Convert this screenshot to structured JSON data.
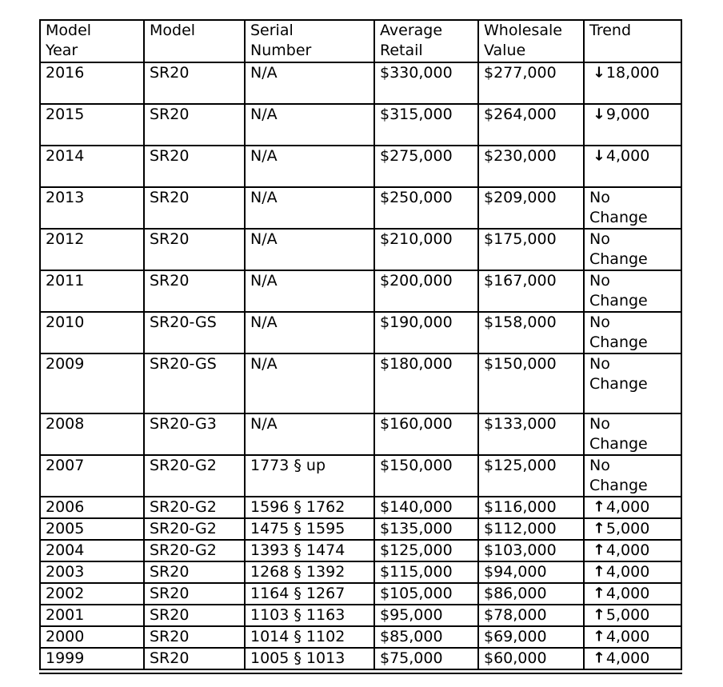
{
  "table": {
    "name": "aircraft-bluebook-value-table",
    "columns": [
      {
        "key": "year",
        "label": "Model\nYear"
      },
      {
        "key": "model",
        "label": "Model"
      },
      {
        "key": "serial",
        "label": "Serial\nNumber"
      },
      {
        "key": "retail",
        "label": "Average\nRetail"
      },
      {
        "key": "wholesale",
        "label": "Wholesale\nValue"
      },
      {
        "key": "trend",
        "label": "Trend"
      }
    ],
    "rows": [
      {
        "size": "tall",
        "year": "2016",
        "model": "SR20",
        "serial": "N/A",
        "retail": "$330,000",
        "wholesale": "$277,000",
        "trend": {
          "dir": "down",
          "arrow": "↓",
          "value": "18,000"
        }
      },
      {
        "size": "tall",
        "year": "2015",
        "model": "SR20",
        "serial": "N/A",
        "retail": "$315,000",
        "wholesale": "$264,000",
        "trend": {
          "dir": "down",
          "arrow": "↓",
          "value": "9,000"
        }
      },
      {
        "size": "tall",
        "year": "2014",
        "model": "SR20",
        "serial": "N/A",
        "retail": "$275,000",
        "wholesale": "$230,000",
        "trend": {
          "dir": "down",
          "arrow": "↓",
          "value": "4,000"
        }
      },
      {
        "size": "tall",
        "year": "2013",
        "model": "SR20",
        "serial": "N/A",
        "retail": "$250,000",
        "wholesale": "$209,000",
        "trend": {
          "dir": "none",
          "text": "No\nChange"
        }
      },
      {
        "size": "tall",
        "year": "2012",
        "model": "SR20",
        "serial": "N/A",
        "retail": "$210,000",
        "wholesale": "$175,000",
        "trend": {
          "dir": "none",
          "text": "No\nChange"
        }
      },
      {
        "size": "tall",
        "year": "2011",
        "model": "SR20",
        "serial": "N/A",
        "retail": "$200,000",
        "wholesale": "$167,000",
        "trend": {
          "dir": "none",
          "text": "No\nChange"
        }
      },
      {
        "size": "tall",
        "year": "2010",
        "model": "SR20-GS",
        "serial": "N/A",
        "retail": "$190,000",
        "wholesale": "$158,000",
        "trend": {
          "dir": "none",
          "text": "No\nChange"
        }
      },
      {
        "size": "xtall",
        "year": "2009",
        "model": "SR20-GS",
        "serial": "N/A",
        "retail": "$180,000",
        "wholesale": "$150,000",
        "trend": {
          "dir": "none",
          "text": "No\nChange"
        }
      },
      {
        "size": "tall",
        "year": "2008",
        "model": "SR20-G3",
        "serial": "N/A",
        "retail": "$160,000",
        "wholesale": "$133,000",
        "trend": {
          "dir": "none",
          "text": "No\nChange"
        }
      },
      {
        "size": "tall",
        "year": "2007",
        "model": "SR20-G2",
        "serial": "1773 § up",
        "retail": "$150,000",
        "wholesale": "$125,000",
        "trend": {
          "dir": "none",
          "text": "No\nChange"
        }
      },
      {
        "size": "short",
        "year": "2006",
        "model": "SR20-G2",
        "serial": "1596 § 1762",
        "retail": "$140,000",
        "wholesale": "$116,000",
        "trend": {
          "dir": "up",
          "arrow": "↑",
          "value": "4,000"
        }
      },
      {
        "size": "short",
        "year": "2005",
        "model": "SR20-G2",
        "serial": "1475 § 1595",
        "retail": "$135,000",
        "wholesale": "$112,000",
        "trend": {
          "dir": "up",
          "arrow": "↑",
          "value": "5,000"
        }
      },
      {
        "size": "short",
        "year": "2004",
        "model": "SR20-G2",
        "serial": "1393 § 1474",
        "retail": "$125,000",
        "wholesale": "$103,000",
        "trend": {
          "dir": "up",
          "arrow": "↑",
          "value": "4,000"
        }
      },
      {
        "size": "short",
        "year": "2003",
        "model": "SR20",
        "serial": "1268 § 1392",
        "retail": "$115,000",
        "wholesale": "$94,000",
        "trend": {
          "dir": "up",
          "arrow": "↑",
          "value": "4,000"
        }
      },
      {
        "size": "short",
        "year": "2002",
        "model": "SR20",
        "serial": "1164 § 1267",
        "retail": "$105,000",
        "wholesale": "$86,000",
        "trend": {
          "dir": "up",
          "arrow": "↑",
          "value": "4,000"
        }
      },
      {
        "size": "short",
        "year": "2001",
        "model": "SR20",
        "serial": "1103 § 1163",
        "retail": "$95,000",
        "wholesale": "$78,000",
        "trend": {
          "dir": "up",
          "arrow": "↑",
          "value": "5,000"
        }
      },
      {
        "size": "short",
        "year": "2000",
        "model": "SR20",
        "serial": "1014 § 1102",
        "retail": "$85,000",
        "wholesale": "$69,000",
        "trend": {
          "dir": "up",
          "arrow": "↑",
          "value": "4,000"
        }
      },
      {
        "size": "short",
        "year": "1999",
        "model": "SR20",
        "serial": "1005 § 1013",
        "retail": "$75,000",
        "wholesale": "$60,000",
        "trend": {
          "dir": "up",
          "arrow": "↑",
          "value": "4,000"
        }
      }
    ]
  },
  "colors": {
    "border": "#000000",
    "text": "#000000",
    "background": "#ffffff"
  }
}
